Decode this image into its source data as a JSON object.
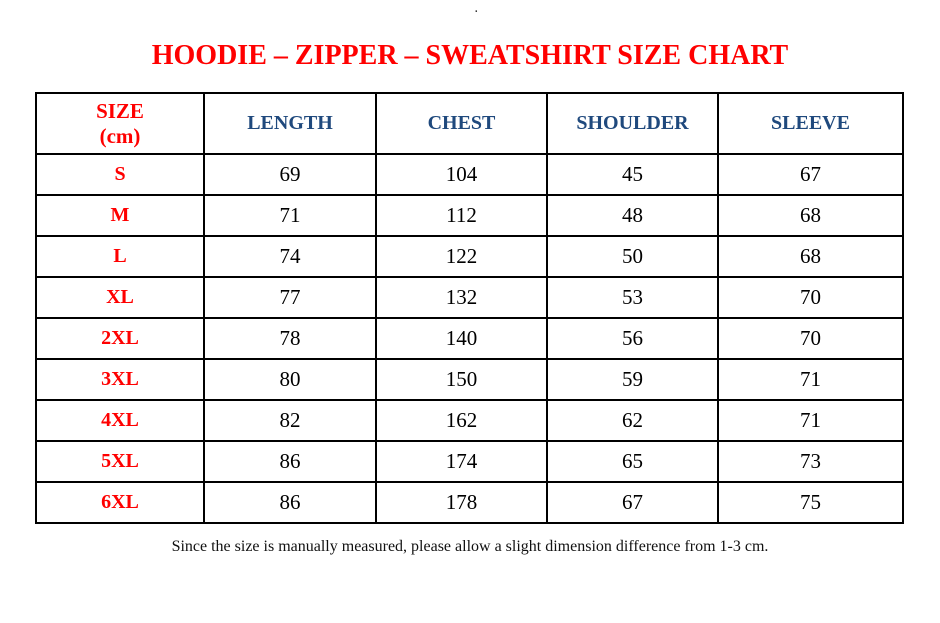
{
  "page": {
    "top_mark": "."
  },
  "title": "HOODIE – ZIPPER – SWEATSHIRT SIZE CHART",
  "table": {
    "size_header": {
      "line1": "SIZE",
      "line2": "(cm)"
    },
    "columns": [
      "LENGTH",
      "CHEST",
      "SHOULDER",
      "SLEEVE"
    ],
    "rows": [
      {
        "size": "S",
        "length": "69",
        "chest": "104",
        "shoulder": "45",
        "sleeve": "67"
      },
      {
        "size": "M",
        "length": "71",
        "chest": "112",
        "shoulder": "48",
        "sleeve": "68"
      },
      {
        "size": "L",
        "length": "74",
        "chest": "122",
        "shoulder": "50",
        "sleeve": "68"
      },
      {
        "size": "XL",
        "length": "77",
        "chest": "132",
        "shoulder": "53",
        "sleeve": "70"
      },
      {
        "size": "2XL",
        "length": "78",
        "chest": "140",
        "shoulder": "56",
        "sleeve": "70"
      },
      {
        "size": "3XL",
        "length": "80",
        "chest": "150",
        "shoulder": "59",
        "sleeve": "71"
      },
      {
        "size": "4XL",
        "length": "82",
        "chest": "162",
        "shoulder": "62",
        "sleeve": "71"
      },
      {
        "size": "5XL",
        "length": "86",
        "chest": "174",
        "shoulder": "65",
        "sleeve": "73"
      },
      {
        "size": "6XL",
        "length": "86",
        "chest": "178",
        "shoulder": "67",
        "sleeve": "75"
      }
    ]
  },
  "footer_note": "Since the size is manually measured, please allow a slight dimension difference from 1-3 cm.",
  "colors": {
    "accent_red": "#ff0000",
    "header_blue": "#1f497d",
    "border_black": "#000000"
  }
}
